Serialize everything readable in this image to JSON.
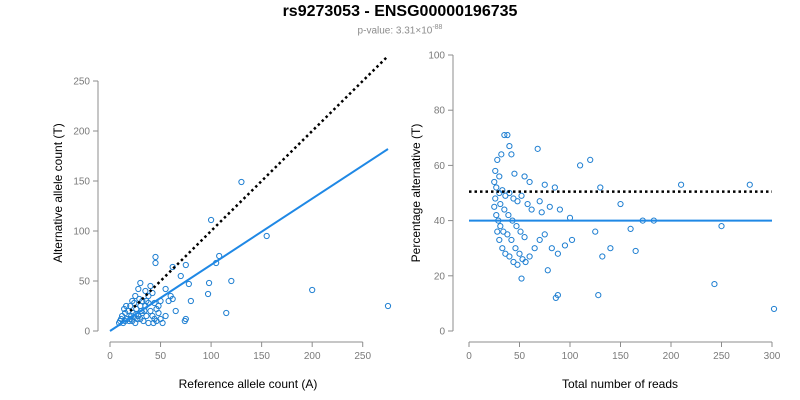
{
  "header": {
    "title": "rs9273053 - ENSG00000196735",
    "pvalue_prefix": "p-value: 3.31×10",
    "pvalue_exponent": "-88"
  },
  "colors": {
    "points": "#1f7fd1",
    "fit_line": "#1f88e5",
    "reference_line": "#000000",
    "axis": "#8c8c8c"
  },
  "chart_data": [
    {
      "type": "scatter",
      "xlabel": "Reference allele count (A)",
      "ylabel": "Alternative allele count (T)",
      "xlim": [
        0,
        275
      ],
      "ylim": [
        0,
        250
      ],
      "xticks": [
        0,
        50,
        100,
        150,
        200,
        250
      ],
      "yticks": [
        0,
        50,
        100,
        150,
        200,
        250
      ],
      "reference_line": {
        "style": "dotted",
        "x": [
          20,
          275
        ],
        "y": [
          20,
          275
        ]
      },
      "fit_line": {
        "style": "solid",
        "x": [
          0,
          275
        ],
        "y": [
          0,
          182
        ]
      },
      "points": [
        [
          200,
          41
        ],
        [
          275,
          25
        ],
        [
          130,
          149
        ],
        [
          100,
          111
        ],
        [
          155,
          95
        ],
        [
          120,
          50
        ],
        [
          115,
          18
        ],
        [
          105,
          68
        ],
        [
          108,
          75
        ],
        [
          98,
          48
        ],
        [
          97,
          37
        ],
        [
          75,
          66
        ],
        [
          62,
          64
        ],
        [
          70,
          55
        ],
        [
          78,
          47
        ],
        [
          80,
          30
        ],
        [
          75,
          12
        ],
        [
          74,
          10
        ],
        [
          65,
          20
        ],
        [
          45,
          74
        ],
        [
          45,
          68
        ],
        [
          55,
          42
        ],
        [
          58,
          30
        ],
        [
          60,
          35
        ],
        [
          62,
          32
        ],
        [
          55,
          15
        ],
        [
          48,
          18
        ],
        [
          40,
          45
        ],
        [
          42,
          38
        ],
        [
          38,
          35
        ],
        [
          35,
          40
        ],
        [
          44,
          28
        ],
        [
          46,
          22
        ],
        [
          50,
          12
        ],
        [
          52,
          8
        ],
        [
          30,
          48
        ],
        [
          28,
          42
        ],
        [
          32,
          30
        ],
        [
          30,
          25
        ],
        [
          34,
          20
        ],
        [
          36,
          15
        ],
        [
          33,
          10
        ],
        [
          38,
          8
        ],
        [
          25,
          35
        ],
        [
          22,
          30
        ],
        [
          24,
          28
        ],
        [
          20,
          25
        ],
        [
          26,
          22
        ],
        [
          23,
          18
        ],
        [
          21,
          15
        ],
        [
          27,
          12
        ],
        [
          18,
          20
        ],
        [
          15,
          18
        ],
        [
          16,
          25
        ],
        [
          14,
          22
        ],
        [
          12,
          15
        ],
        [
          17,
          12
        ],
        [
          19,
          10
        ],
        [
          13,
          8
        ],
        [
          22,
          10
        ],
        [
          25,
          8
        ],
        [
          28,
          15
        ],
        [
          30,
          12
        ],
        [
          32,
          18
        ],
        [
          35,
          25
        ],
        [
          40,
          20
        ],
        [
          42,
          15
        ],
        [
          44,
          12
        ],
        [
          46,
          10
        ],
        [
          48,
          25
        ],
        [
          50,
          30
        ],
        [
          38,
          28
        ],
        [
          36,
          30
        ],
        [
          29,
          32
        ],
        [
          31,
          20
        ],
        [
          10,
          10
        ],
        [
          11,
          12
        ],
        [
          9,
          8
        ],
        [
          15,
          10
        ],
        [
          20,
          12
        ],
        [
          24,
          14
        ],
        [
          26,
          17
        ],
        [
          43,
          8
        ]
      ]
    },
    {
      "type": "scatter",
      "xlabel": "Total number of reads",
      "ylabel": "Percentage alternative (T)",
      "xlim": [
        0,
        300
      ],
      "ylim": [
        0,
        100
      ],
      "xticks": [
        0,
        50,
        100,
        150,
        200,
        250,
        300
      ],
      "yticks": [
        0,
        20,
        40,
        60,
        80,
        100
      ],
      "reference_line": {
        "style": "dotted",
        "y": 50.5
      },
      "fit_line": {
        "style": "solid",
        "y": 40
      },
      "points": [
        [
          35,
          71
        ],
        [
          38,
          71
        ],
        [
          40,
          67
        ],
        [
          68,
          66
        ],
        [
          32,
          64
        ],
        [
          28,
          62
        ],
        [
          42,
          64
        ],
        [
          120,
          62
        ],
        [
          110,
          60
        ],
        [
          26,
          58
        ],
        [
          30,
          56
        ],
        [
          45,
          57
        ],
        [
          55,
          56
        ],
        [
          60,
          54
        ],
        [
          75,
          53
        ],
        [
          85,
          52
        ],
        [
          130,
          52
        ],
        [
          210,
          53
        ],
        [
          278,
          53
        ],
        [
          25,
          54
        ],
        [
          27,
          52
        ],
        [
          30,
          50
        ],
        [
          33,
          51
        ],
        [
          36,
          49
        ],
        [
          40,
          50
        ],
        [
          44,
          48
        ],
        [
          48,
          47
        ],
        [
          52,
          49
        ],
        [
          58,
          46
        ],
        [
          62,
          44
        ],
        [
          70,
          47
        ],
        [
          72,
          43
        ],
        [
          80,
          45
        ],
        [
          90,
          44
        ],
        [
          100,
          41
        ],
        [
          150,
          46
        ],
        [
          172,
          40
        ],
        [
          183,
          40
        ],
        [
          250,
          38
        ],
        [
          25,
          45
        ],
        [
          27,
          42
        ],
        [
          29,
          40
        ],
        [
          31,
          38
        ],
        [
          34,
          36
        ],
        [
          38,
          35
        ],
        [
          42,
          33
        ],
        [
          46,
          30
        ],
        [
          50,
          28
        ],
        [
          53,
          26
        ],
        [
          56,
          25
        ],
        [
          60,
          27
        ],
        [
          65,
          30
        ],
        [
          70,
          33
        ],
        [
          75,
          35
        ],
        [
          78,
          22
        ],
        [
          82,
          30
        ],
        [
          88,
          28
        ],
        [
          95,
          31
        ],
        [
          102,
          33
        ],
        [
          125,
          36
        ],
        [
          132,
          27
        ],
        [
          140,
          30
        ],
        [
          160,
          37
        ],
        [
          28,
          36
        ],
        [
          30,
          33
        ],
        [
          33,
          30
        ],
        [
          36,
          28
        ],
        [
          40,
          27
        ],
        [
          44,
          25
        ],
        [
          48,
          24
        ],
        [
          52,
          19
        ],
        [
          86,
          12
        ],
        [
          88,
          13
        ],
        [
          128,
          13
        ],
        [
          165,
          29
        ],
        [
          243,
          17
        ],
        [
          302,
          8
        ],
        [
          26,
          48
        ],
        [
          31,
          46
        ],
        [
          35,
          44
        ],
        [
          39,
          42
        ],
        [
          43,
          40
        ],
        [
          47,
          38
        ],
        [
          51,
          36
        ],
        [
          55,
          34
        ]
      ]
    }
  ]
}
